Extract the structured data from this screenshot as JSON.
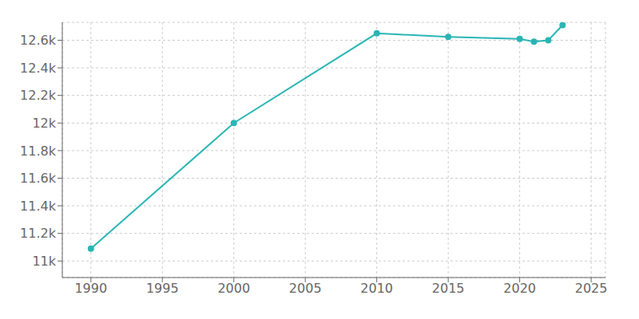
{
  "chart_data": {
    "type": "line",
    "x": [
      1990,
      2000,
      2010,
      2015,
      2020,
      2021,
      2022,
      2023
    ],
    "values": [
      11090,
      12000,
      12650,
      12625,
      12610,
      12590,
      12600,
      12710
    ],
    "color": "#2ab5b5",
    "marker": "circle",
    "xlim": [
      1988,
      2026
    ],
    "ylim": [
      10880,
      12730
    ],
    "xticks": [
      1990,
      1995,
      2000,
      2005,
      2010,
      2015,
      2020,
      2025
    ],
    "yticks": [
      {
        "value": 11000,
        "label": "11k"
      },
      {
        "value": 11200,
        "label": "11.2k"
      },
      {
        "value": 11400,
        "label": "11.4k"
      },
      {
        "value": 11600,
        "label": "11.6k"
      },
      {
        "value": 11800,
        "label": "11.8k"
      },
      {
        "value": 12000,
        "label": "12k"
      },
      {
        "value": 12200,
        "label": "12.2k"
      },
      {
        "value": 12400,
        "label": "12.4k"
      },
      {
        "value": 12600,
        "label": "12.6k"
      }
    ],
    "grid": true
  }
}
